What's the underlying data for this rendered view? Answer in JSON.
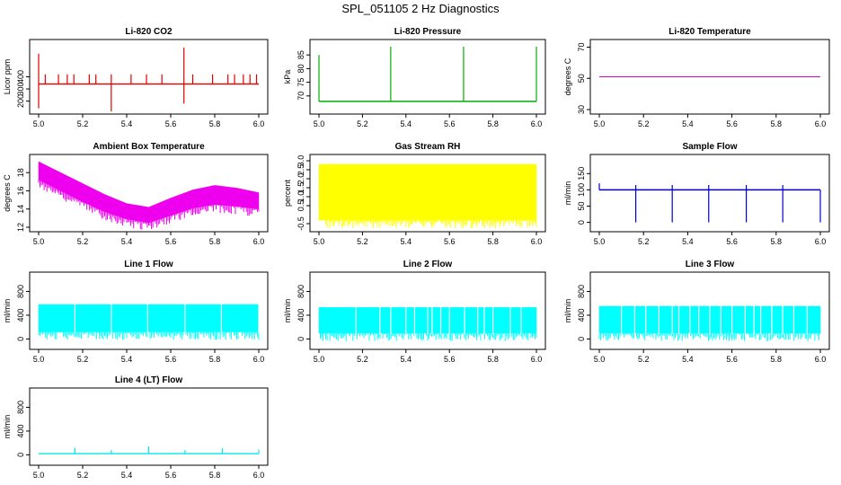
{
  "figure_title": "SPL_051105  2 Hz Diagnostics",
  "chart_data": [
    {
      "type": "line",
      "title": "Li-820 CO2",
      "ylabel": "Licor ppm",
      "color": "#e00000",
      "xlim": [
        5.0,
        6.0
      ],
      "ylim": [
        130,
        670
      ],
      "x_ticks": [
        "5.0",
        "5.2",
        "5.4",
        "5.6",
        "5.8",
        "6.0"
      ],
      "y_ticks": [
        "200",
        "300",
        "400"
      ],
      "x_tick_values": [
        5.0,
        5.2,
        5.4,
        5.6,
        5.8,
        6.0
      ],
      "y_tick_values": [
        200,
        300,
        400
      ],
      "series": [
        {
          "name": "CO2",
          "baseline": 340,
          "spikes": [
            [
              5.0,
              590
            ],
            [
              5.0,
              140
            ],
            [
              5.03,
              420
            ],
            [
              5.09,
              420
            ],
            [
              5.13,
              420
            ],
            [
              5.16,
              420
            ],
            [
              5.23,
              420
            ],
            [
              5.26,
              420
            ],
            [
              5.33,
              420
            ],
            [
              5.33,
              115
            ],
            [
              5.42,
              420
            ],
            [
              5.49,
              420
            ],
            [
              5.56,
              420
            ],
            [
              5.66,
              640
            ],
            [
              5.66,
              180
            ],
            [
              5.7,
              420
            ],
            [
              5.79,
              420
            ],
            [
              5.86,
              420
            ],
            [
              5.89,
              420
            ],
            [
              5.93,
              420
            ],
            [
              5.96,
              420
            ],
            [
              5.99,
              420
            ]
          ]
        }
      ]
    },
    {
      "type": "line",
      "title": "Li-820 Pressure",
      "ylabel": "kPa",
      "color": "#00b000",
      "xlim": [
        5.0,
        6.0
      ],
      "ylim": [
        65,
        89
      ],
      "x_ticks": [
        "5.0",
        "5.2",
        "5.4",
        "5.6",
        "5.8",
        "6.0"
      ],
      "y_ticks": [
        "70",
        "75",
        "80",
        "85"
      ],
      "x_tick_values": [
        5.0,
        5.2,
        5.4,
        5.6,
        5.8,
        6.0
      ],
      "y_tick_values": [
        70,
        75,
        80,
        85
      ],
      "series": [
        {
          "name": "Pressure",
          "baseline": 68,
          "spikes": [
            [
              5.0,
              85
            ],
            [
              5.33,
              88
            ],
            [
              5.665,
              88
            ],
            [
              6.0,
              88
            ]
          ]
        }
      ]
    },
    {
      "type": "line",
      "title": "Li-820 Temperature",
      "ylabel": "degrees C",
      "color": "#d000d0",
      "xlim": [
        5.0,
        6.0
      ],
      "ylim": [
        30,
        72
      ],
      "x_ticks": [
        "5.0",
        "5.2",
        "5.4",
        "5.6",
        "5.8",
        "6.0"
      ],
      "y_ticks": [
        "30",
        "50",
        "70"
      ],
      "x_tick_values": [
        5.0,
        5.2,
        5.4,
        5.6,
        5.8,
        6.0
      ],
      "y_tick_values": [
        30,
        50,
        70
      ],
      "series": [
        {
          "name": "Temperature",
          "value": 51
        }
      ]
    },
    {
      "type": "area",
      "title": "Ambient Box Temperature",
      "ylabel": "degrees C",
      "color": "#ee00ee",
      "xlim": [
        5.0,
        6.0
      ],
      "ylim": [
        12,
        19.5
      ],
      "x_ticks": [
        "5.0",
        "5.2",
        "5.4",
        "5.6",
        "5.8",
        "6.0"
      ],
      "y_ticks": [
        "12",
        "14",
        "16",
        "18"
      ],
      "x_tick_values": [
        5.0,
        5.2,
        5.4,
        5.6,
        5.8,
        6.0
      ],
      "y_tick_values": [
        12,
        14,
        16,
        18
      ],
      "series": [
        {
          "name": "Ambient",
          "x": [
            5.0,
            5.1,
            5.2,
            5.3,
            5.4,
            5.5,
            5.6,
            5.7,
            5.8,
            5.9,
            6.0
          ],
          "low": [
            17.2,
            16.0,
            14.8,
            13.7,
            12.9,
            12.5,
            13.3,
            14.1,
            14.5,
            14.3,
            14.0
          ],
          "high": [
            19.2,
            18.0,
            16.8,
            15.6,
            14.6,
            14.2,
            15.2,
            16.1,
            16.6,
            16.3,
            15.8
          ]
        }
      ]
    },
    {
      "type": "area",
      "title": "Gas Stream RH",
      "ylabel": "percent",
      "color": "#ffff00",
      "xlim": [
        5.0,
        6.0
      ],
      "ylim": [
        -0.7,
        3.1
      ],
      "x_ticks": [
        "5.0",
        "5.2",
        "5.4",
        "5.6",
        "5.8",
        "6.0"
      ],
      "y_ticks": [
        "-0.5",
        "0.5",
        "1.0",
        "1.5",
        "2.0",
        "2.5",
        "3.0"
      ],
      "x_tick_values": [
        5.0,
        5.2,
        5.4,
        5.6,
        5.8,
        6.0
      ],
      "y_tick_values": [
        -0.5,
        0.5,
        1.0,
        1.5,
        2.0,
        2.5,
        3.0
      ],
      "series": [
        {
          "name": "RH",
          "x": [
            5.0,
            6.0
          ],
          "low": [
            -0.3,
            -0.3
          ],
          "high": [
            2.8,
            2.8
          ]
        }
      ]
    },
    {
      "type": "line",
      "title": "Sample Flow",
      "ylabel": "ml/min",
      "color": "#0000cc",
      "xlim": [
        5.0,
        6.0
      ],
      "ylim": [
        -15,
        195
      ],
      "x_ticks": [
        "5.0",
        "5.2",
        "5.4",
        "5.6",
        "5.8",
        "6.0"
      ],
      "y_ticks": [
        "0",
        "50",
        "100",
        "150"
      ],
      "x_tick_values": [
        5.0,
        5.2,
        5.4,
        5.6,
        5.8,
        6.0
      ],
      "y_tick_values": [
        0,
        50,
        100,
        150
      ],
      "series": [
        {
          "name": "Sample",
          "baseline": 100,
          "spikes": [
            [
              5.0,
              120
            ],
            [
              5.165,
              0
            ],
            [
              5.165,
              115
            ],
            [
              5.33,
              0
            ],
            [
              5.33,
              115
            ],
            [
              5.495,
              0
            ],
            [
              5.495,
              115
            ],
            [
              5.665,
              0
            ],
            [
              5.665,
              115
            ],
            [
              5.83,
              0
            ],
            [
              5.83,
              115
            ],
            [
              6.0,
              0
            ]
          ]
        }
      ]
    },
    {
      "type": "area",
      "title": "Line 1 Flow",
      "ylabel": "ml/min",
      "color": "#00ffff",
      "xlim": [
        5.0,
        6.0
      ],
      "ylim": [
        -100,
        1050
      ],
      "x_ticks": [
        "5.0",
        "5.2",
        "5.4",
        "5.6",
        "5.8",
        "6.0"
      ],
      "y_ticks": [
        "0",
        "400",
        "800"
      ],
      "x_tick_values": [
        5.0,
        5.2,
        5.4,
        5.6,
        5.8,
        6.0
      ],
      "y_tick_values": [
        0,
        400,
        800
      ],
      "series": [
        {
          "name": "Line 1",
          "x": [
            5.0,
            6.0
          ],
          "low": [
            120,
            120
          ],
          "high": [
            580,
            580
          ],
          "gaps": [
            5.165,
            5.33,
            5.495,
            5.665,
            5.83,
            6.0
          ]
        }
      ]
    },
    {
      "type": "area",
      "title": "Line 2 Flow",
      "ylabel": "ml/min",
      "color": "#00ffff",
      "xlim": [
        5.0,
        6.0
      ],
      "ylim": [
        -100,
        1050
      ],
      "x_ticks": [
        "5.0",
        "5.2",
        "5.4",
        "5.6",
        "5.8",
        "6.0"
      ],
      "y_ticks": [
        "0",
        "400",
        "800"
      ],
      "x_tick_values": [
        5.0,
        5.2,
        5.4,
        5.6,
        5.8,
        6.0
      ],
      "y_tick_values": [
        0,
        400,
        800
      ],
      "series": [
        {
          "name": "Line 2",
          "x": [
            5.0,
            6.0
          ],
          "low": [
            100,
            100
          ],
          "high": [
            530,
            530
          ],
          "gaps": [
            5.17,
            5.28,
            5.33,
            5.4,
            5.44,
            5.5,
            5.52,
            5.56,
            5.6,
            5.67,
            5.73,
            5.76,
            5.8,
            5.88,
            5.93
          ]
        }
      ]
    },
    {
      "type": "area",
      "title": "Line 3 Flow",
      "ylabel": "ml/min",
      "color": "#00ffff",
      "xlim": [
        5.0,
        6.0
      ],
      "ylim": [
        -100,
        1050
      ],
      "x_ticks": [
        "5.0",
        "5.2",
        "5.4",
        "5.6",
        "5.8",
        "6.0"
      ],
      "y_ticks": [
        "0",
        "400",
        "800"
      ],
      "x_tick_values": [
        5.0,
        5.2,
        5.4,
        5.6,
        5.8,
        6.0
      ],
      "y_tick_values": [
        0,
        400,
        800
      ],
      "series": [
        {
          "name": "Line 3",
          "x": [
            5.0,
            6.0
          ],
          "low": [
            100,
            100
          ],
          "high": [
            550,
            550
          ],
          "gaps": [
            5.1,
            5.16,
            5.21,
            5.27,
            5.33,
            5.36,
            5.41,
            5.45,
            5.5,
            5.55,
            5.6,
            5.66,
            5.7,
            5.73,
            5.78,
            5.83,
            5.88,
            5.94
          ]
        }
      ]
    },
    {
      "type": "line",
      "title": "Line 4 (LT) Flow",
      "ylabel": "ml/min",
      "color": "#00e8e8",
      "xlim": [
        5.0,
        6.0
      ],
      "ylim": [
        -100,
        1050
      ],
      "x_ticks": [
        "5.0",
        "5.2",
        "5.4",
        "5.6",
        "5.8",
        "6.0"
      ],
      "y_ticks": [
        "0",
        "400",
        "800"
      ],
      "x_tick_values": [
        5.0,
        5.2,
        5.4,
        5.6,
        5.8,
        6.0
      ],
      "y_tick_values": [
        0,
        400,
        800
      ],
      "series": [
        {
          "name": "Line 4",
          "baseline": 20,
          "spikes": [
            [
              5.165,
              120
            ],
            [
              5.33,
              80
            ],
            [
              5.5,
              140
            ],
            [
              5.665,
              80
            ],
            [
              5.835,
              110
            ],
            [
              6.0,
              90
            ]
          ]
        }
      ]
    }
  ]
}
